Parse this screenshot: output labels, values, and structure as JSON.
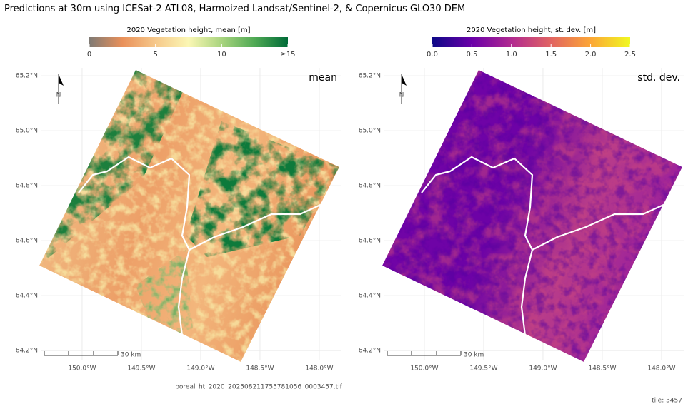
{
  "title": "Predictions at 30m using ICESat-2 ATL08, Harmoized Landsat/Sentinel-2, & Copernicus GLO30 DEM",
  "panels": [
    {
      "colorbar": {
        "title": "2020 Vegetation height, mean [m]",
        "range": [
          0,
          15
        ],
        "ticks": [
          0,
          5,
          10,
          {
            "value": 15,
            "label": "≥15"
          }
        ],
        "colors": [
          "#7f7a74",
          "#e9905a",
          "#f6c88a",
          "#fbf7b4",
          "#a8d47e",
          "#4fa954",
          "#006b38"
        ]
      },
      "label": "mean",
      "north": "N",
      "scale": "30 km",
      "lat": {
        "lim": [
          64.164,
          65.229
        ],
        "ticks": [
          {
            "value": 64.2,
            "label": "64.2°N"
          },
          {
            "value": 64.4,
            "label": "64.4°N"
          },
          {
            "value": 64.6,
            "label": "64.6°N"
          },
          {
            "value": 64.8,
            "label": "64.8°N"
          },
          {
            "value": 65.0,
            "label": "65.0°N"
          },
          {
            "value": 65.2,
            "label": "65.2°N"
          }
        ]
      },
      "lon": {
        "lim": [
          -150.343,
          -147.813
        ],
        "ticks": [
          {
            "value": -150.0,
            "label": "150.0°W"
          },
          {
            "value": -149.5,
            "label": "149.5°W"
          },
          {
            "value": -149.0,
            "label": "149.0°W"
          },
          {
            "value": -148.5,
            "label": "148.5°W"
          },
          {
            "value": -148.0,
            "label": "148.0°W"
          }
        ]
      }
    },
    {
      "colorbar": {
        "title": "2020 Vegetation height, st. dev. [m]",
        "range": [
          0,
          2.5
        ],
        "ticks": [
          {
            "value": 0,
            "label": "0.0"
          },
          0.5,
          {
            "value": 1,
            "label": "1.0"
          },
          1.5,
          {
            "value": 2,
            "label": "2.0"
          },
          2.5
        ],
        "colors": [
          "#0d0887",
          "#6a00a8",
          "#b12a90",
          "#e16462",
          "#fca636",
          "#f0f921"
        ]
      },
      "label": "std. dev.",
      "north": "N",
      "scale": "30 km",
      "lat": {
        "lim": [
          64.164,
          65.229
        ],
        "ticks": [
          {
            "value": 64.2,
            "label": "64.2°N"
          },
          {
            "value": 64.4,
            "label": "64.4°N"
          },
          {
            "value": 64.6,
            "label": "64.6°N"
          },
          {
            "value": 64.8,
            "label": "64.8°N"
          },
          {
            "value": 65.0,
            "label": "65.0°N"
          },
          {
            "value": 65.2,
            "label": "65.2°N"
          }
        ]
      },
      "lon": {
        "lim": [
          -150.337,
          -147.807
        ],
        "ticks": [
          {
            "value": -150.0,
            "label": "150.0°W"
          },
          {
            "value": -149.5,
            "label": "149.5°W"
          },
          {
            "value": -149.0,
            "label": "149.0°W"
          },
          {
            "value": -148.5,
            "label": "148.5°W"
          },
          {
            "value": -148.0,
            "label": "148.0°W"
          }
        ]
      }
    }
  ],
  "filename": "boreal_ht_2020_202508211755781056_0003457.tif",
  "tile": "tile: 3457"
}
